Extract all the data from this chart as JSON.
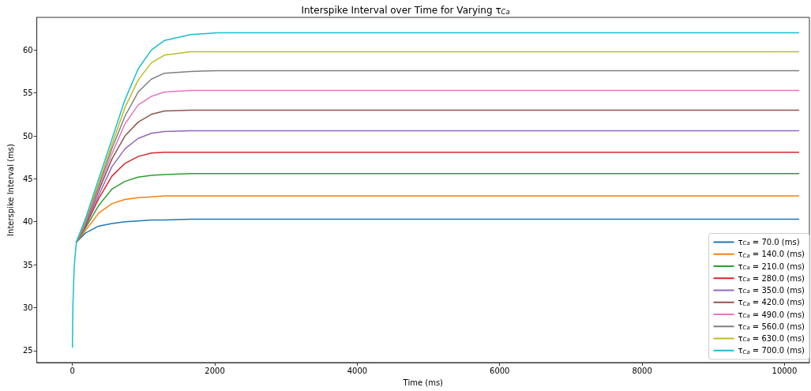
{
  "chart_data": {
    "type": "line",
    "title": "Interspike Interval over Time for Varying τ$_{Ca}$",
    "xlabel": "Time (ms)",
    "ylabel": "Interspike Interval (ms)",
    "x": [
      0,
      7,
      26,
      55,
      185,
      369,
      554,
      738,
      923,
      1107,
      1292,
      1661,
      2030,
      3000,
      4000,
      5000,
      6000,
      7000,
      8000,
      9000,
      10200
    ],
    "series": [
      {
        "name": "τ$_{Ca}$ = 70.0 (ms)",
        "color": "#1f77b4",
        "values": [
          null,
          null,
          null,
          37.6,
          38.7,
          39.5,
          39.8,
          40.0,
          40.1,
          40.2,
          40.2,
          40.3,
          40.3,
          40.3,
          40.3,
          40.3,
          40.3,
          40.3,
          40.3,
          40.3,
          40.3
        ]
      },
      {
        "name": "τ$_{Ca}$ = 140.0 (ms)",
        "color": "#ff7f0e",
        "values": [
          null,
          null,
          null,
          37.6,
          39.0,
          41.0,
          42.1,
          42.6,
          42.8,
          42.9,
          43.0,
          43.0,
          43.0,
          43.0,
          43.0,
          43.0,
          43.0,
          43.0,
          43.0,
          43.0,
          43.0
        ]
      },
      {
        "name": "τ$_{Ca}$ = 210.0 (ms)",
        "color": "#2ca02c",
        "values": [
          null,
          null,
          null,
          37.6,
          39.3,
          41.9,
          43.8,
          44.7,
          45.2,
          45.4,
          45.5,
          45.6,
          45.6,
          45.6,
          45.6,
          45.6,
          45.6,
          45.6,
          45.6,
          45.6,
          45.6
        ]
      },
      {
        "name": "τ$_{Ca}$ = 280.0 (ms)",
        "color": "#d62728",
        "values": [
          null,
          null,
          null,
          37.6,
          39.5,
          42.7,
          45.3,
          46.8,
          47.6,
          48.0,
          48.1,
          48.1,
          48.1,
          48.1,
          48.1,
          48.1,
          48.1,
          48.1,
          48.1,
          48.1,
          48.1
        ]
      },
      {
        "name": "τ$_{Ca}$ = 350.0 (ms)",
        "color": "#9467bd",
        "values": [
          null,
          null,
          null,
          37.6,
          39.6,
          43.1,
          46.4,
          48.5,
          49.7,
          50.3,
          50.5,
          50.6,
          50.6,
          50.6,
          50.6,
          50.6,
          50.6,
          50.6,
          50.6,
          50.6,
          50.6
        ]
      },
      {
        "name": "τ$_{Ca}$ = 420.0 (ms)",
        "color": "#8c564b",
        "values": [
          null,
          null,
          null,
          37.6,
          39.8,
          43.6,
          47.3,
          50.0,
          51.6,
          52.5,
          52.9,
          53.0,
          53.0,
          53.0,
          53.0,
          53.0,
          53.0,
          53.0,
          53.0,
          53.0,
          53.0
        ]
      },
      {
        "name": "τ$_{Ca}$ = 490.0 (ms)",
        "color": "#e377c2",
        "values": [
          null,
          null,
          null,
          37.6,
          39.9,
          43.9,
          47.9,
          51.4,
          53.6,
          54.6,
          55.1,
          55.3,
          55.3,
          55.3,
          55.3,
          55.3,
          55.3,
          55.3,
          55.3,
          55.3,
          55.3
        ]
      },
      {
        "name": "τ$_{Ca}$ = 560.0 (ms)",
        "color": "#7f7f7f",
        "values": [
          null,
          null,
          null,
          37.6,
          40.1,
          44.2,
          48.5,
          52.3,
          55.1,
          56.6,
          57.3,
          57.5,
          57.6,
          57.6,
          57.6,
          57.6,
          57.6,
          57.6,
          57.6,
          57.6,
          57.6
        ]
      },
      {
        "name": "τ$_{Ca}$ = 630.0 (ms)",
        "color": "#bcbd22",
        "values": [
          null,
          null,
          null,
          37.6,
          40.2,
          44.5,
          49.0,
          53.3,
          56.5,
          58.5,
          59.4,
          59.8,
          59.8,
          59.8,
          59.8,
          59.8,
          59.8,
          59.8,
          59.8,
          59.8,
          59.8
        ]
      },
      {
        "name": "τ$_{Ca}$ = 700.0 (ms)",
        "color": "#17becf",
        "values": [
          25.4,
          30.3,
          34.9,
          37.6,
          40.4,
          45.0,
          49.6,
          54.2,
          57.8,
          60.0,
          61.1,
          61.8,
          62.0,
          62.0,
          62.0,
          62.0,
          62.0,
          62.0,
          62.0,
          62.0,
          62.0
        ]
      }
    ],
    "xlim": [
      -500,
      10350
    ],
    "ylim": [
      23.6,
      63.8
    ],
    "xticks": [
      0,
      2000,
      4000,
      6000,
      8000,
      10000
    ],
    "yticks": [
      25,
      30,
      35,
      40,
      45,
      50,
      55,
      60
    ],
    "legend": "bottom right",
    "line_style": "solid"
  }
}
